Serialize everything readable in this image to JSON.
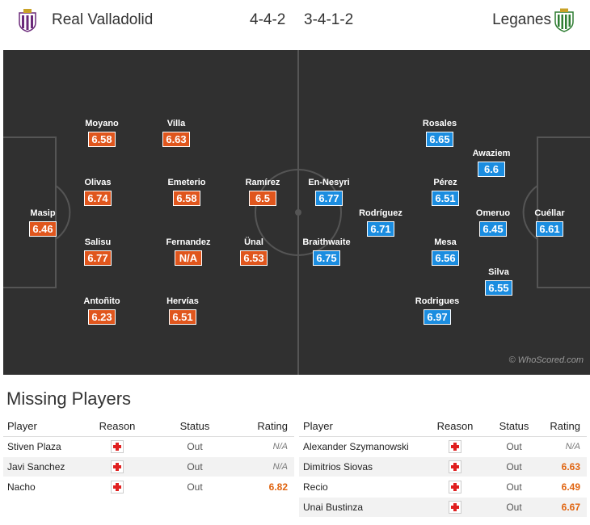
{
  "header": {
    "home_team": "Real Valladolid",
    "away_team": "Leganes",
    "home_formation": "4-4-2",
    "away_formation": "3-4-1-2"
  },
  "pitch": {
    "watermark": "© WhoScored.com",
    "home_players": [
      {
        "name": "Masip",
        "rating": "6.46"
      },
      {
        "name": "Moyano",
        "rating": "6.58"
      },
      {
        "name": "Olivas",
        "rating": "6.74"
      },
      {
        "name": "Salisu",
        "rating": "6.77"
      },
      {
        "name": "Antoñito",
        "rating": "6.23"
      },
      {
        "name": "Villa",
        "rating": "6.63"
      },
      {
        "name": "Emeterio",
        "rating": "6.58"
      },
      {
        "name": "Fernandez",
        "rating": "N/A"
      },
      {
        "name": "Hervías",
        "rating": "6.51"
      },
      {
        "name": "Ramírez",
        "rating": "6.5"
      },
      {
        "name": "Ünal",
        "rating": "6.53"
      }
    ],
    "away_players": [
      {
        "name": "En-Nesyri",
        "rating": "6.77"
      },
      {
        "name": "Braithwaite",
        "rating": "6.75"
      },
      {
        "name": "Rodríguez",
        "rating": "6.71"
      },
      {
        "name": "Rosales",
        "rating": "6.65"
      },
      {
        "name": "Pérez",
        "rating": "6.51"
      },
      {
        "name": "Mesa",
        "rating": "6.56"
      },
      {
        "name": "Rodrigues",
        "rating": "6.97"
      },
      {
        "name": "Awaziem",
        "rating": "6.6"
      },
      {
        "name": "Omeruo",
        "rating": "6.45"
      },
      {
        "name": "Silva",
        "rating": "6.55"
      },
      {
        "name": "Cuéllar",
        "rating": "6.61"
      }
    ]
  },
  "colors": {
    "home_rating_bg": "#e0561d",
    "away_rating_bg": "#1b8de0",
    "pitch_bg": "#303030",
    "missing_rating": "#e06410"
  },
  "missing": {
    "title": "Missing Players",
    "columns": {
      "player": "Player",
      "reason": "Reason",
      "status": "Status",
      "rating": "Rating"
    },
    "reason_icon": "injury-cross-icon",
    "home": [
      {
        "player": "Stiven Plaza",
        "status": "Out",
        "rating": "N/A"
      },
      {
        "player": "Javi Sanchez",
        "status": "Out",
        "rating": "N/A"
      },
      {
        "player": "Nacho",
        "status": "Out",
        "rating": "6.82"
      }
    ],
    "away": [
      {
        "player": "Alexander Szymanowski",
        "status": "Out",
        "rating": "N/A"
      },
      {
        "player": "Dimitrios Siovas",
        "status": "Out",
        "rating": "6.63"
      },
      {
        "player": "Recio",
        "status": "Out",
        "rating": "6.49"
      },
      {
        "player": "Unai Bustinza",
        "status": "Out",
        "rating": "6.67"
      }
    ]
  }
}
